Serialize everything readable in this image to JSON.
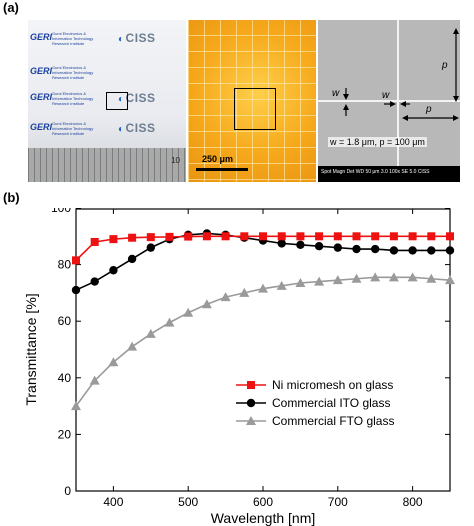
{
  "panel_a": {
    "label": "(a)",
    "photo": {
      "geri_logo": "GERI",
      "geri_subtitle": "Gumi Electronics & Information Technology Research Institute",
      "ciss_logo": "CISS",
      "ruler_number": "10"
    },
    "optical": {
      "scale_label": "250 μm"
    },
    "sem": {
      "w_label": "w",
      "p_label": "p",
      "params": "w = 1.8 μm, p = 100 μm",
      "info_bar": "Spot Magn Det WD    50 μm    3.0  100x  SE  5.0  CISS"
    }
  },
  "panel_b": {
    "label": "(b)"
  },
  "chart_data": {
    "type": "line",
    "xlabel": "Wavelength [nm]",
    "ylabel": "Transmittance [%]",
    "xlim": [
      350,
      850
    ],
    "ylim": [
      0,
      100
    ],
    "xticks": [
      400,
      500,
      600,
      700,
      800
    ],
    "yticks": [
      0,
      20,
      40,
      60,
      80,
      100
    ],
    "legend_position": "lower-right",
    "grid": false,
    "series": [
      {
        "name": "Ni micromesh on glass",
        "color": "#ee1111",
        "marker": "square",
        "x": [
          350,
          375,
          400,
          425,
          450,
          475,
          500,
          525,
          550,
          575,
          600,
          625,
          650,
          675,
          700,
          725,
          750,
          775,
          800,
          825,
          850
        ],
        "y": [
          81.5,
          88,
          89,
          89.5,
          89.7,
          89.8,
          89.9,
          90,
          90,
          90,
          90,
          90,
          90,
          90,
          90,
          90,
          90,
          90,
          90,
          90,
          90
        ]
      },
      {
        "name": "Commercial ITO glass",
        "color": "#000000",
        "marker": "circle",
        "x": [
          350,
          375,
          400,
          425,
          450,
          475,
          500,
          525,
          550,
          575,
          600,
          625,
          650,
          675,
          700,
          725,
          750,
          775,
          800,
          825,
          850
        ],
        "y": [
          71,
          74,
          78,
          82,
          86,
          89,
          90.5,
          91,
          90.5,
          89.5,
          88.5,
          87.5,
          87,
          86.5,
          86,
          85.5,
          85.5,
          85,
          85,
          85,
          85
        ]
      },
      {
        "name": "Commercial FTO glass",
        "color": "#9a9a9a",
        "marker": "triangle",
        "x": [
          350,
          375,
          400,
          425,
          450,
          475,
          500,
          525,
          550,
          575,
          600,
          625,
          650,
          675,
          700,
          725,
          750,
          775,
          800,
          825,
          850
        ],
        "y": [
          30,
          39,
          45.5,
          51,
          55.5,
          59.5,
          63,
          66,
          68.5,
          70,
          71.5,
          72.5,
          73.5,
          74,
          74.5,
          75,
          75.5,
          75.5,
          75.5,
          75,
          74.5
        ]
      }
    ]
  }
}
